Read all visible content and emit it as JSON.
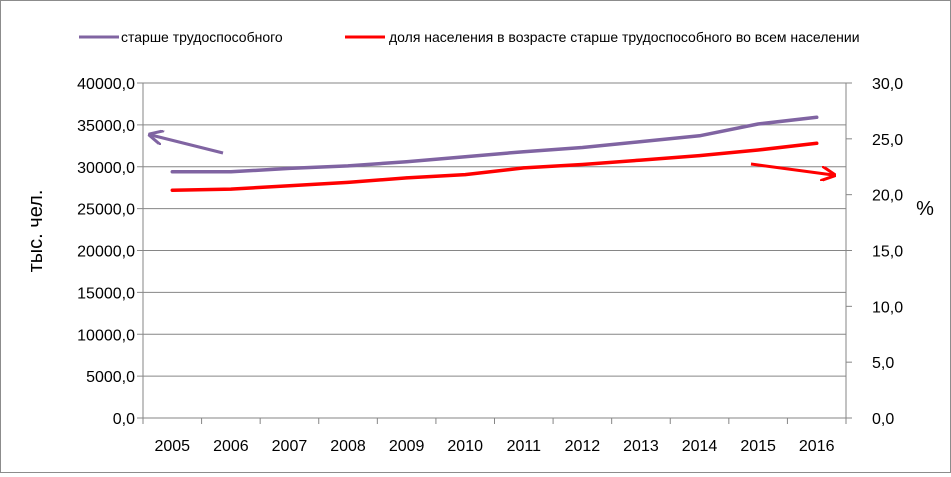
{
  "chart_data": {
    "type": "line",
    "categories": [
      "2005",
      "2006",
      "2007",
      "2008",
      "2009",
      "2010",
      "2011",
      "2012",
      "2013",
      "2014",
      "2015",
      "2016"
    ],
    "series": [
      {
        "name": "старше трудоспособного",
        "axis": "left",
        "color": "#8064a2",
        "values": [
          29400,
          29400,
          29800,
          30100,
          30600,
          31200,
          31800,
          32300,
          33000,
          33700,
          35100,
          35900
        ]
      },
      {
        "name": "доля населения в возрасте старше трудоспособного во всем населении",
        "axis": "right",
        "color": "#ff0000",
        "values": [
          20.4,
          20.5,
          20.8,
          21.1,
          21.5,
          21.8,
          22.4,
          22.7,
          23.1,
          23.5,
          24.0,
          24.6
        ]
      }
    ],
    "y_left": {
      "label": "тыс. чел.",
      "ylim": [
        0,
        40000
      ],
      "ticks": [
        "0,0",
        "5000,0",
        "10000,0",
        "15000,0",
        "20000,0",
        "25000,0",
        "30000,0",
        "35000,0",
        "40000,0"
      ]
    },
    "y_right": {
      "label": "%",
      "ylim": [
        0,
        30
      ],
      "ticks": [
        "0,0",
        "5,0",
        "10,0",
        "15,0",
        "20,0",
        "25,0",
        "30,0"
      ]
    },
    "grid": "horizontal",
    "legend_position": "top",
    "annotations": [
      {
        "kind": "arrow",
        "points_to": "left-axis",
        "color": "#8064a2"
      },
      {
        "kind": "arrow",
        "points_to": "right-axis",
        "color": "#ff0000"
      }
    ]
  }
}
